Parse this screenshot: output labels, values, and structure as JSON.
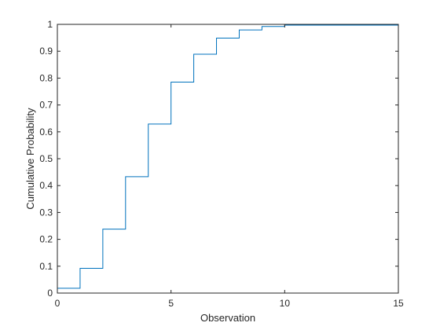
{
  "chart_data": {
    "type": "line",
    "style": "stairs",
    "xlabel": "Observation",
    "ylabel": "Cumulative Probability",
    "xlim": [
      0,
      15
    ],
    "ylim": [
      0,
      1
    ],
    "grid": false,
    "legend": "none",
    "series": [
      {
        "color": "#0072BD",
        "x": [
          0,
          1,
          2,
          3,
          4,
          5,
          6,
          7,
          8,
          9,
          10,
          15
        ],
        "y": [
          0.018,
          0.092,
          0.238,
          0.433,
          0.629,
          0.785,
          0.889,
          0.949,
          0.979,
          0.992,
          0.997,
          1.0
        ]
      }
    ],
    "xticks": [
      0,
      5,
      10,
      15
    ],
    "xtick_labels": [
      "0",
      "5",
      "10",
      "15"
    ],
    "yticks": [
      0,
      0.1,
      0.2,
      0.3,
      0.4,
      0.5,
      0.6,
      0.7,
      0.8,
      0.9,
      1
    ],
    "ytick_labels": [
      "0",
      "0.1",
      "0.2",
      "0.3",
      "0.4",
      "0.5",
      "0.6",
      "0.7",
      "0.8",
      "0.9",
      "1"
    ]
  }
}
